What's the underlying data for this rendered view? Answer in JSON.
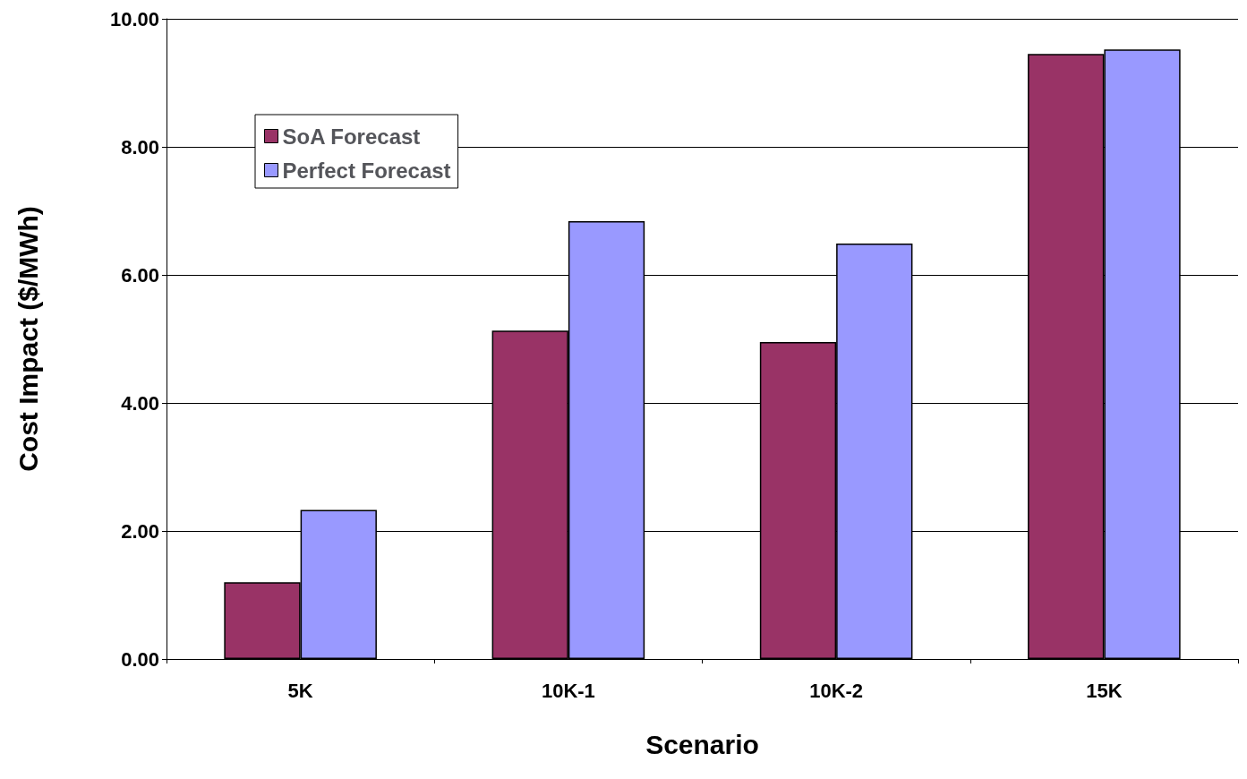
{
  "chart_data": {
    "type": "bar",
    "xlabel": "Scenario",
    "ylabel": "Cost Impact ($/MWh)",
    "categories": [
      "5K",
      "10K-1",
      "10K-2",
      "15K"
    ],
    "series": [
      {
        "name": "SoA Forecast",
        "color": "#993366",
        "values": [
          1.2,
          5.13,
          4.95,
          9.45
        ]
      },
      {
        "name": "Perfect Forecast",
        "color": "#9999ff",
        "values": [
          2.33,
          6.84,
          6.49,
          9.52
        ]
      }
    ],
    "ylim": [
      0,
      10
    ],
    "yticks": [
      {
        "value": 0,
        "label": "0.00"
      },
      {
        "value": 2,
        "label": "2.00"
      },
      {
        "value": 4,
        "label": "4.00"
      },
      {
        "value": 6,
        "label": "6.00"
      },
      {
        "value": 8,
        "label": "8.00"
      },
      {
        "value": 10,
        "label": "10.00"
      }
    ],
    "grid": "y",
    "legend": "top left"
  }
}
